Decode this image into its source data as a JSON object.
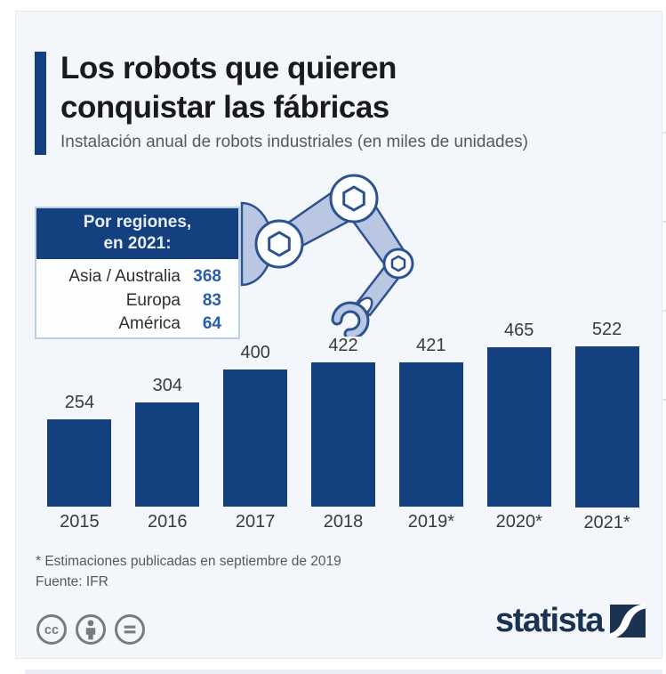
{
  "header": {
    "title_line1": "Los robots que quieren",
    "title_line2": "conquistar las fábricas",
    "subtitle": "Instalación anual de robots industriales (en miles de unidades)"
  },
  "region_box": {
    "header_line1": "Por regiones,",
    "header_line2": "en 2021:",
    "rows": [
      {
        "label": "Asia / Australia",
        "value": "368"
      },
      {
        "label": "Europa",
        "value": "83"
      },
      {
        "label": "América",
        "value": "64"
      }
    ]
  },
  "chart_data": {
    "type": "bar",
    "categories": [
      "2015",
      "2016",
      "2017",
      "2018",
      "2019*",
      "2020*",
      "2021*"
    ],
    "values": [
      254,
      304,
      400,
      422,
      421,
      465,
      522
    ],
    "title": "Los robots que quieren conquistar las fábricas",
    "subtitle": "Instalación anual de robots industriales (en miles de unidades)",
    "xlabel": "",
    "ylabel": "miles de unidades",
    "ylim": [
      0,
      522
    ],
    "grid": false,
    "legend": false,
    "data_labels": true,
    "annotation_box": {
      "title": "Por regiones, en 2021:",
      "rows": [
        {
          "label": "Asia / Australia",
          "value": 368
        },
        {
          "label": "Europa",
          "value": 83
        },
        {
          "label": "América",
          "value": 64
        }
      ]
    }
  },
  "footnote": {
    "line1": "* Estimaciones publicadas en septiembre de 2019",
    "line2": "Fuente: IFR"
  },
  "footer": {
    "license_icons": [
      "cc-icon",
      "cc-by-person-icon",
      "cc-nd-equals-icon"
    ],
    "brand": "statista"
  },
  "illustration": "robot-arm",
  "colors": {
    "bar": "#14407f",
    "accent": "#14407f",
    "region_value_blue": "#2a5caa",
    "card_bg": "#f3f6fa",
    "brand_navy": "#1a3353",
    "robot_fill": "#b9c7e2",
    "robot_outline": "#2d5291"
  }
}
